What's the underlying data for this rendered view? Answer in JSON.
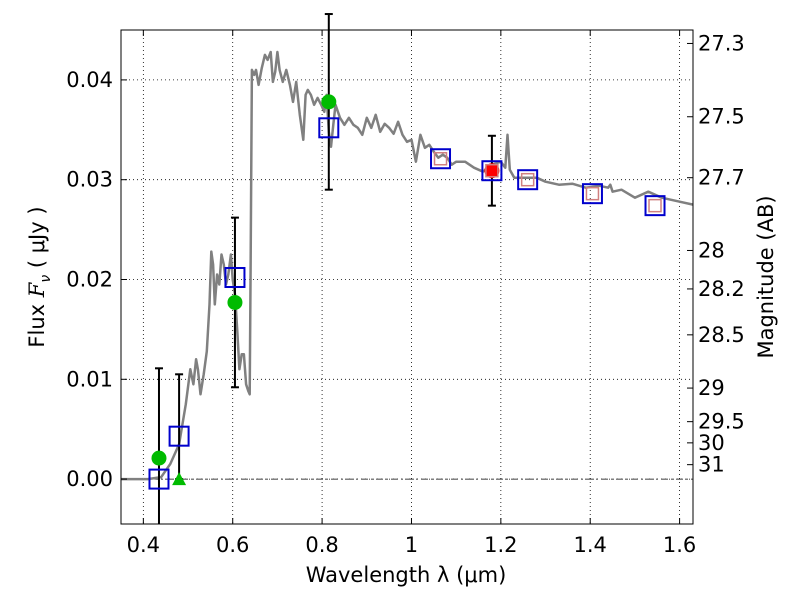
{
  "chart_data": {
    "type": "scatter",
    "title": "",
    "xlabel": "Wavelength  λ (μm)",
    "ylabel_parts": {
      "prefix": "Flux  ",
      "symbol": "F",
      "subscript": "ν",
      "units": "  ( μJy )"
    },
    "right_ylabel": "Magnitude (AB)",
    "xlim": [
      0.35,
      1.63
    ],
    "ylim": [
      -0.0045,
      0.045
    ],
    "x_ticks": [
      0.4,
      0.6,
      0.8,
      1.0,
      1.2,
      1.4,
      1.6
    ],
    "x_tick_labels": [
      "0.4",
      "0.6",
      "0.8",
      "1",
      "1.2",
      "1.4",
      "1.6"
    ],
    "y_ticks": [
      0.0,
      0.01,
      0.02,
      0.03,
      0.04
    ],
    "y_tick_labels": [
      "0.00",
      "0.01",
      "0.02",
      "0.03",
      "0.04"
    ],
    "right_ticks": [
      {
        "label": "27.3",
        "mag": 27.3
      },
      {
        "label": "27.5",
        "mag": 27.5
      },
      {
        "label": "27.7",
        "mag": 27.7
      },
      {
        "label": "28",
        "mag": 28.0
      },
      {
        "label": "28.2",
        "mag": 28.2
      },
      {
        "label": "28.5",
        "mag": 28.5
      },
      {
        "label": "29",
        "mag": 29.0
      },
      {
        "label": "29.5",
        "mag": 29.5
      },
      {
        "label": "30",
        "mag": 30.0
      },
      {
        "label": "31",
        "mag": 31.0
      }
    ],
    "grid": true,
    "colors": {
      "model": "#808080",
      "observed": "#00bb00",
      "nir_detection": "#ff0000",
      "synthetic": "#0000cc",
      "synthetic_inner": "#d08080",
      "errorbar": "#000000",
      "zero_line": "#000000"
    },
    "series": [
      {
        "name": "model spectrum",
        "kind": "line",
        "x": [
          0.35,
          0.38,
          0.41,
          0.44,
          0.46,
          0.48,
          0.495,
          0.505,
          0.512,
          0.518,
          0.522,
          0.528,
          0.535,
          0.542,
          0.548,
          0.552,
          0.556,
          0.56,
          0.565,
          0.57,
          0.575,
          0.58,
          0.585,
          0.59,
          0.596,
          0.6,
          0.605,
          0.61,
          0.615,
          0.62,
          0.625,
          0.63,
          0.635,
          0.638,
          0.64,
          0.643,
          0.648,
          0.652,
          0.658,
          0.665,
          0.672,
          0.678,
          0.685,
          0.69,
          0.695,
          0.7,
          0.705,
          0.712,
          0.72,
          0.728,
          0.735,
          0.742,
          0.75,
          0.758,
          0.763,
          0.768,
          0.775,
          0.782,
          0.79,
          0.798,
          0.805,
          0.81,
          0.815,
          0.82,
          0.825,
          0.83,
          0.84,
          0.85,
          0.86,
          0.87,
          0.88,
          0.89,
          0.9,
          0.91,
          0.92,
          0.93,
          0.94,
          0.95,
          0.96,
          0.97,
          0.98,
          0.99,
          1.0,
          1.01,
          1.02,
          1.03,
          1.04,
          1.05,
          1.06,
          1.07,
          1.08,
          1.09,
          1.1,
          1.12,
          1.14,
          1.16,
          1.18,
          1.2,
          1.21,
          1.215,
          1.22,
          1.23,
          1.25,
          1.28,
          1.3,
          1.33,
          1.36,
          1.39,
          1.42,
          1.44,
          1.445,
          1.45,
          1.47,
          1.5,
          1.53,
          1.56,
          1.6,
          1.63
        ],
        "y": [
          0.0,
          0.0,
          0.0,
          0.0002,
          0.0015,
          0.0035,
          0.0075,
          0.011,
          0.0095,
          0.012,
          0.011,
          0.0085,
          0.0105,
          0.0128,
          0.0175,
          0.0228,
          0.0215,
          0.0175,
          0.0205,
          0.0195,
          0.0225,
          0.0215,
          0.0195,
          0.0205,
          0.0225,
          0.02,
          0.0185,
          0.015,
          0.011,
          0.0125,
          0.0125,
          0.0095,
          0.0088,
          0.0085,
          0.021,
          0.041,
          0.0405,
          0.041,
          0.0395,
          0.0412,
          0.0425,
          0.042,
          0.0428,
          0.0398,
          0.0408,
          0.0428,
          0.041,
          0.0398,
          0.041,
          0.0395,
          0.0378,
          0.0398,
          0.0365,
          0.034,
          0.0385,
          0.039,
          0.0385,
          0.0375,
          0.0382,
          0.0375,
          0.0368,
          0.0385,
          0.0348,
          0.0333,
          0.0355,
          0.0375,
          0.0362,
          0.0355,
          0.0362,
          0.0355,
          0.0352,
          0.0345,
          0.0362,
          0.0352,
          0.0365,
          0.0348,
          0.0356,
          0.0352,
          0.0346,
          0.0358,
          0.0345,
          0.0338,
          0.034,
          0.0318,
          0.0345,
          0.0332,
          0.0335,
          0.0328,
          0.0322,
          0.0325,
          0.0322,
          0.0315,
          0.0318,
          0.0318,
          0.0312,
          0.0308,
          0.0315,
          0.0318,
          0.0312,
          0.0345,
          0.031,
          0.0302,
          0.0302,
          0.0302,
          0.0298,
          0.0295,
          0.0296,
          0.0292,
          0.0294,
          0.0292,
          0.0295,
          0.0288,
          0.029,
          0.0282,
          0.0288,
          0.0282,
          0.0278,
          0.0275
        ]
      },
      {
        "name": "synthetic photometry",
        "kind": "open-square",
        "x": [
          0.435,
          0.48,
          0.605,
          0.815,
          1.065,
          1.18,
          1.26,
          1.405,
          1.545
        ],
        "y": [
          0.0,
          0.0043,
          0.0202,
          0.0352,
          0.0321,
          0.0309,
          0.03,
          0.0286,
          0.0274
        ],
        "inner_mark": [
          false,
          false,
          false,
          false,
          true,
          true,
          true,
          true,
          true
        ]
      },
      {
        "name": "observed (optical)",
        "kind": "filled-circle",
        "x": [
          0.435,
          0.605,
          0.815
        ],
        "y": [
          0.0021,
          0.0177,
          0.0378
        ],
        "err": [
          0.009,
          0.0085,
          0.0088
        ]
      },
      {
        "name": "observed upper limit",
        "kind": "filled-triangle",
        "x": [
          0.48
        ],
        "y": [
          0.0
        ],
        "err_up": [
          0.0105
        ]
      },
      {
        "name": "observed (near-IR)",
        "kind": "filled-circle",
        "x": [
          1.18
        ],
        "y": [
          0.0309
        ],
        "err": [
          0.0035
        ]
      }
    ]
  }
}
